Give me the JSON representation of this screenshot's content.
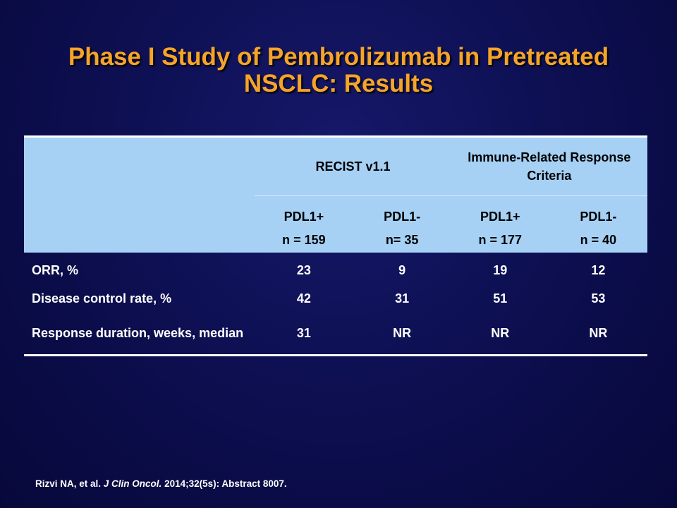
{
  "slide": {
    "title_line1": "Phase I Study of Pembrolizumab in Pretreated",
    "title_line2": "NSCLC: Results"
  },
  "table": {
    "group_headers": [
      "RECIST v1.1",
      "Immune-Related Response Criteria"
    ],
    "sub_headers": [
      "PDL1+",
      "PDL1-",
      "PDL1+",
      "PDL1-"
    ],
    "sample_sizes": [
      "n = 159",
      "n= 35",
      "n = 177",
      "n = 40"
    ],
    "rows": [
      {
        "label": "ORR, %",
        "values": [
          "23",
          "9",
          "19",
          "12"
        ]
      },
      {
        "label": "Disease control rate, %",
        "values": [
          "42",
          "31",
          "51",
          "53"
        ]
      },
      {
        "label": "Response duration, weeks, median",
        "values": [
          "31",
          "NR",
          "NR",
          "NR"
        ]
      }
    ]
  },
  "citation": {
    "authors": "Rizvi NA, et al.",
    "journal": "J Clin Oncol.",
    "details": "2014;32(5s): Abstract 8007."
  },
  "colors": {
    "background": "#0c0e4e",
    "title": "#f5a42a",
    "header_fill": "#a6d1f5",
    "text": "#ffffff"
  }
}
